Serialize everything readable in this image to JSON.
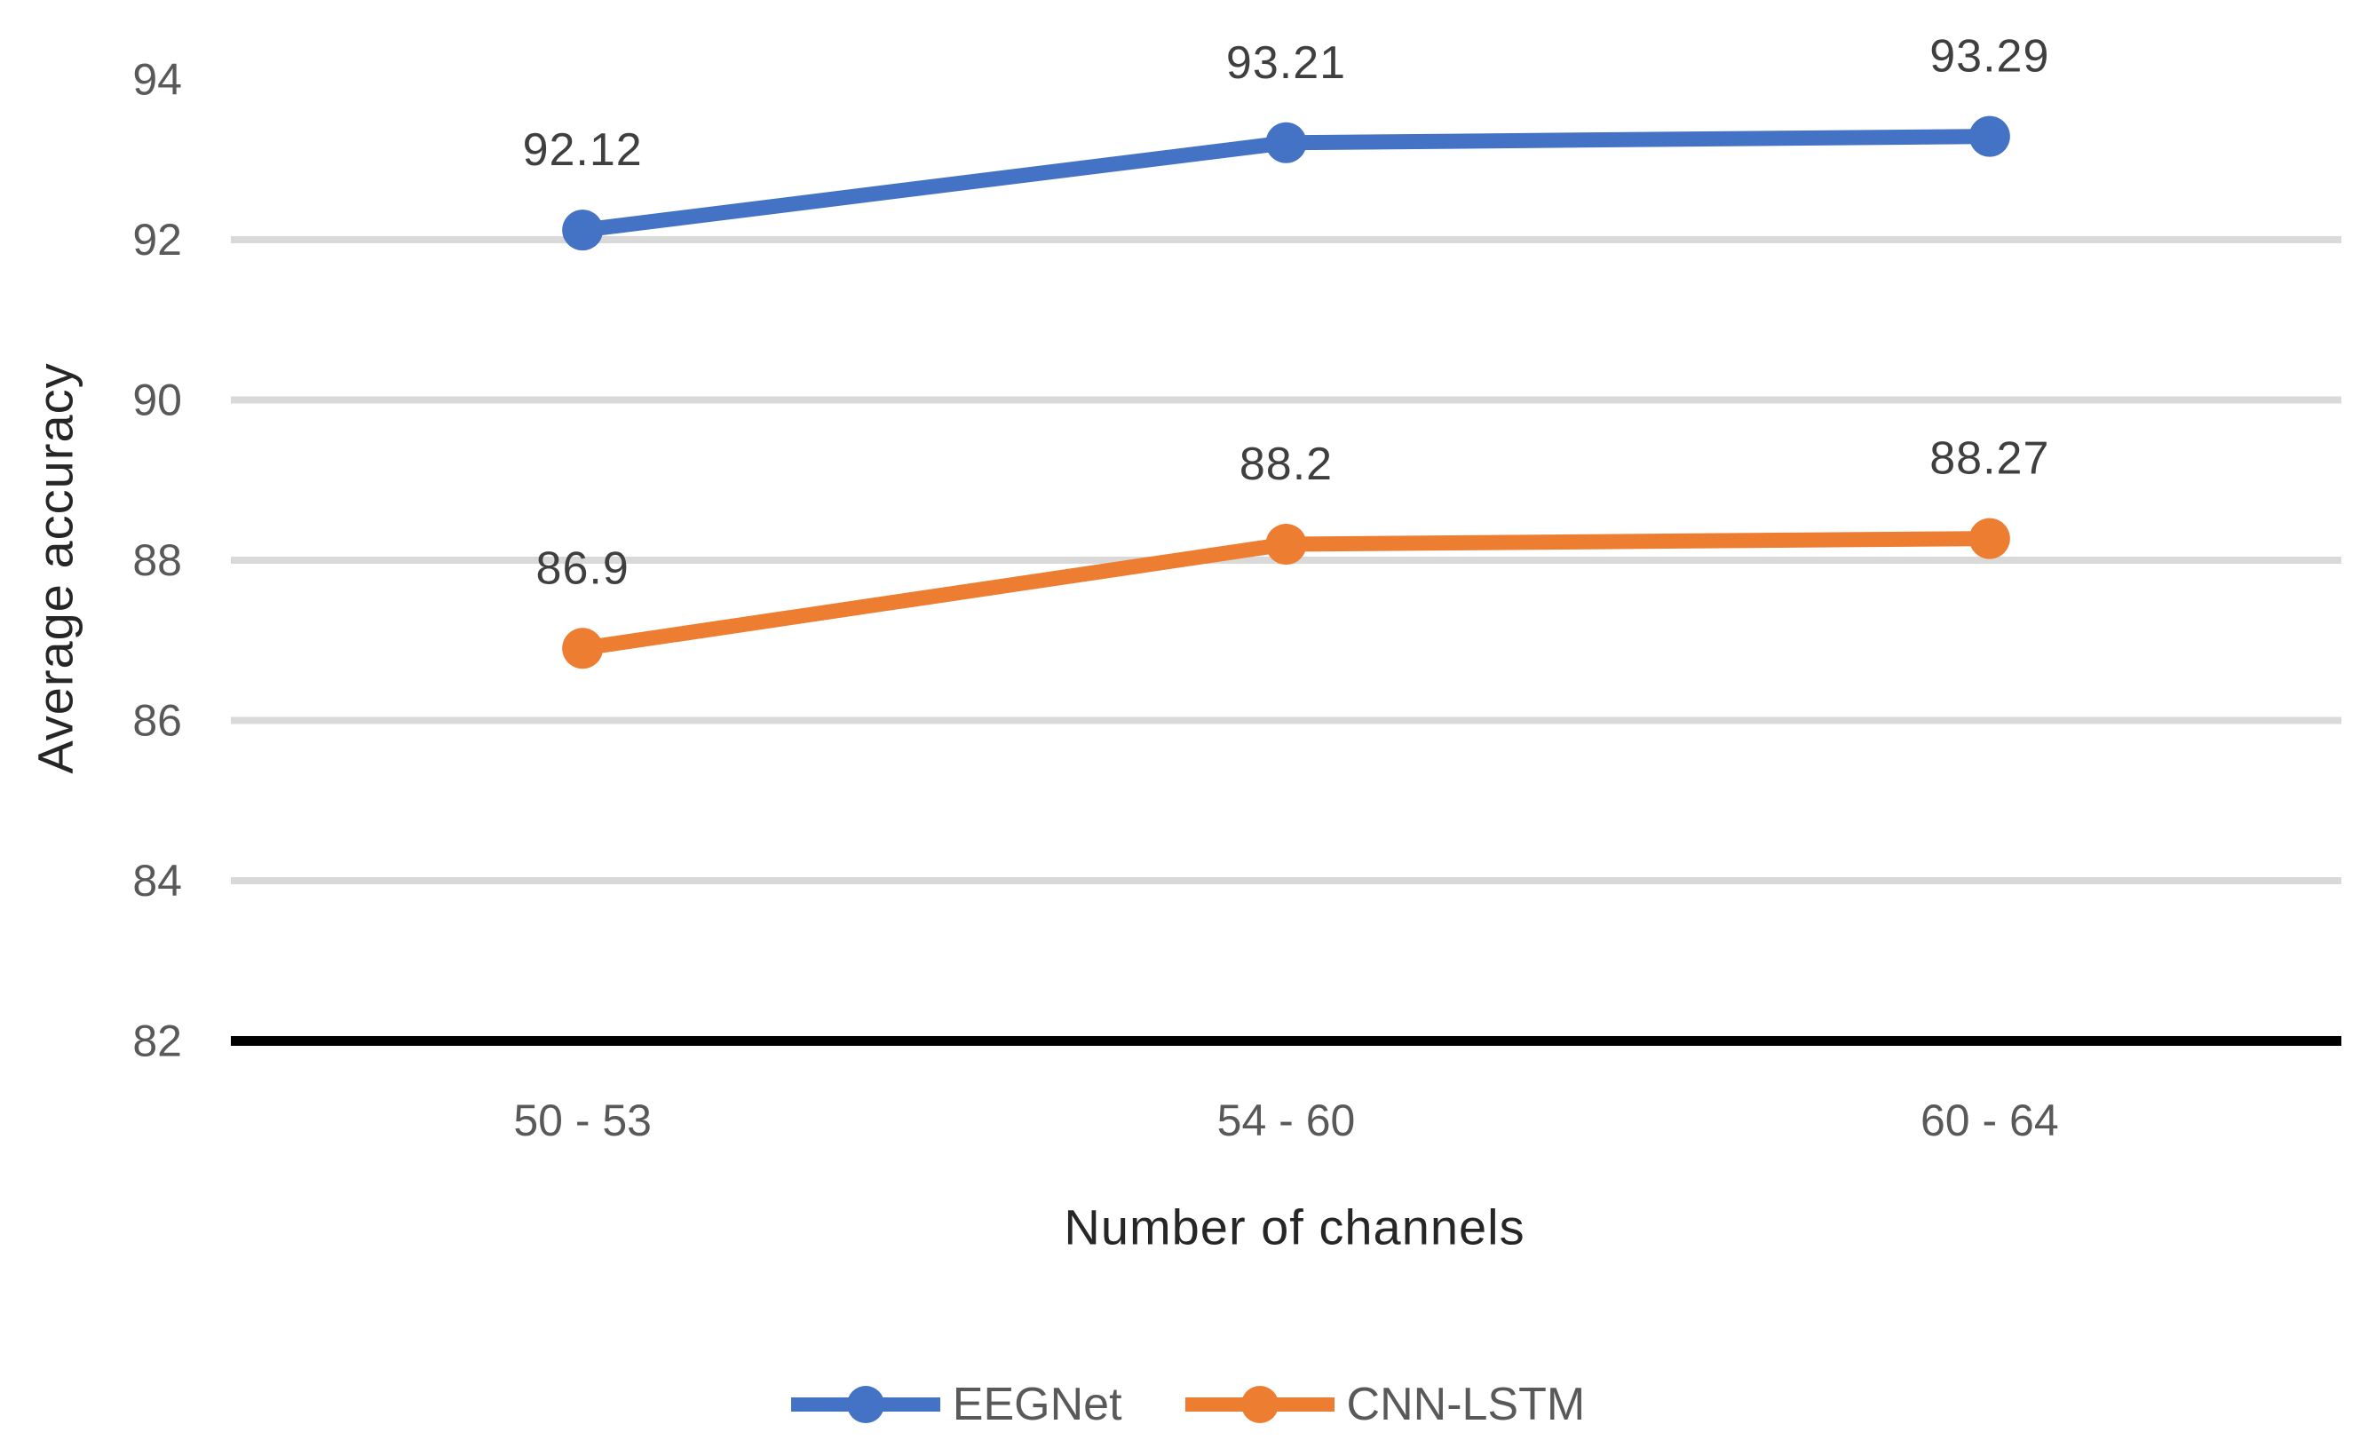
{
  "chart_data": {
    "type": "line",
    "categories": [
      "50 - 53",
      "54 - 60",
      "60 - 64"
    ],
    "series": [
      {
        "name": "EEGNet",
        "values": [
          92.12,
          93.21,
          93.29
        ],
        "labels": [
          "92.12",
          "93.21",
          "93.29"
        ],
        "color": "#4472C4"
      },
      {
        "name": "CNN-LSTM",
        "values": [
          86.9,
          88.2,
          88.27
        ],
        "labels": [
          "86.9",
          "88.2",
          "88.27"
        ],
        "color": "#ED7D31"
      }
    ],
    "title": "",
    "xlabel": "Number of channels",
    "ylabel": "Average accuracy",
    "yticks": [
      94,
      92,
      90,
      88,
      86,
      84,
      82
    ],
    "gridline_ticks": [
      92,
      90,
      88,
      86,
      84
    ],
    "ylim": [
      82,
      94.3
    ],
    "grid": "horizontal",
    "legend_position": "bottom",
    "colors": {
      "axis_line": "#000000",
      "gridline": "#D9D9D9",
      "tick_text": "#595959",
      "data_label_text": "#3F3F3F",
      "axis_title_text": "#262626",
      "legend_text": "#595959"
    }
  }
}
